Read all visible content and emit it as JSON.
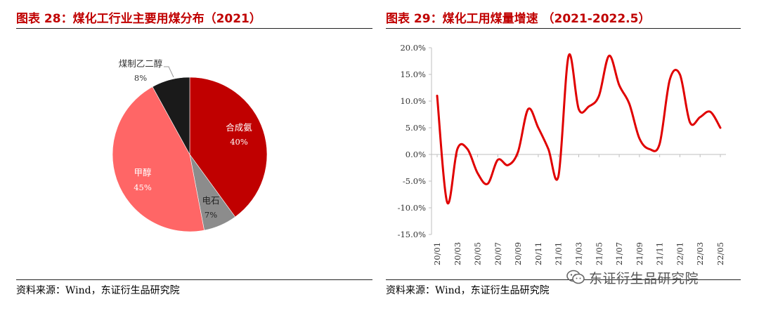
{
  "panels": {
    "left": {
      "title": "图表 28：煤化工行业主要用煤分布（2021）",
      "source": "资料来源：Wind，东证衍生品研究院"
    },
    "right": {
      "title": "图表 29：煤化工用煤量增速  （2021-2022.5）",
      "source": "资料来源：Wind，东证衍生品研究院"
    }
  },
  "watermark": {
    "text": "东证衍生品研究院",
    "icon": "wechat-icon"
  },
  "colors": {
    "accent": "#c00000",
    "pie_dark_red": "#c00000",
    "pie_gray": "#8c8c8c",
    "pie_light_red": "#ff6666",
    "pie_black": "#1a1a1a",
    "line": "#e00000"
  },
  "chart_data": [
    {
      "type": "pie",
      "title": "煤化工行业主要用煤分布（2021）",
      "slices": [
        {
          "name": "合成氨",
          "value": 40,
          "label": "40%",
          "color": "#c00000"
        },
        {
          "name": "电石",
          "value": 7,
          "label": "7%",
          "color": "#8c8c8c"
        },
        {
          "name": "甲醇",
          "value": 45,
          "label": "45%",
          "color": "#ff6666"
        },
        {
          "name": "煤制乙二醇",
          "value": 8,
          "label": "8%",
          "color": "#1a1a1a"
        }
      ],
      "start_angle": "12 o'clock",
      "direction": "clockwise"
    },
    {
      "type": "line",
      "title": "煤化工用煤量增速（2021-2022.5）",
      "ylim": [
        -15,
        20
      ],
      "yticks": [
        20,
        15,
        10,
        5,
        0,
        -5,
        -10,
        -15
      ],
      "ytick_labels": [
        "20.0%",
        "15.0%",
        "10.0%",
        "5.0%",
        "0.0%",
        "-5.0%",
        "-10.0%",
        "-15.0%"
      ],
      "xtick_labels": [
        "20/01",
        "20/03",
        "20/05",
        "20/07",
        "20/09",
        "20/11",
        "21/01",
        "21/03",
        "21/05",
        "21/07",
        "21/09",
        "21/11",
        "22/01",
        "22/03",
        "22/05"
      ],
      "grid": false,
      "series": [
        {
          "name": "煤化工用煤量增速",
          "color": "#e00000",
          "values": [
            11,
            -9,
            1,
            1,
            -3.5,
            -5.5,
            -1,
            -2,
            0.5,
            8.5,
            5,
            1,
            -4,
            18.5,
            8.5,
            9,
            11,
            18.5,
            13,
            9.5,
            3,
            1,
            2,
            14,
            15,
            6,
            7,
            8,
            5
          ]
        }
      ]
    }
  ]
}
